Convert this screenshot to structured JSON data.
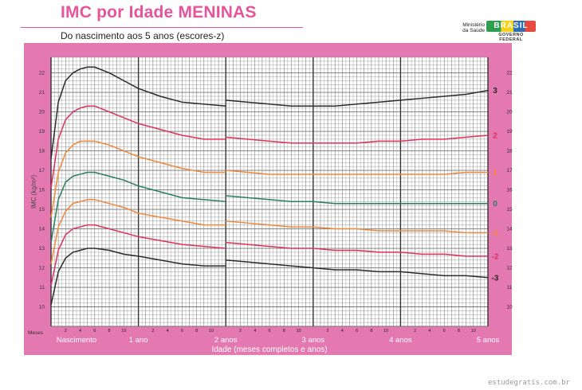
{
  "header": {
    "title": "IMC por Idade MENINAS",
    "subtitle": "Do nascimento aos 5 anos (escores-z)",
    "logo_ministry": "Ministério da Saúde",
    "logo_brand": "BRASIL",
    "logo_gov": "GOVERNO FEDERAL",
    "logo_colors": [
      "#2e9e4f",
      "#f6d21c",
      "#2e6cb3",
      "#e54b3f"
    ]
  },
  "watermark": "estudegratis.com.br",
  "colors": {
    "frame": "#e478b0",
    "grid_bg": "#ffffff",
    "grid_line": "#777777"
  },
  "chart_data": {
    "type": "line",
    "ylabel": "IMC (kg/m²)",
    "xlabel": "Idade (meses completos e anos)",
    "ylim": [
      9,
      22.8
    ],
    "xlim": [
      0,
      60
    ],
    "y_ticks": [
      10,
      11,
      12,
      13,
      14,
      15,
      16,
      17,
      18,
      19,
      20,
      21,
      22
    ],
    "months_label": "Meses",
    "x_major_labels": [
      {
        "x": 0,
        "label": "Nascimento"
      },
      {
        "x": 12,
        "label": "1 ano"
      },
      {
        "x": 24,
        "label": "2 anos"
      },
      {
        "x": 36,
        "label": "3 anos"
      },
      {
        "x": 48,
        "label": "4 anos"
      },
      {
        "x": 60,
        "label": "5 anos"
      }
    ],
    "x_minor_ticks": [
      {
        "x": 2,
        "label": "2"
      },
      {
        "x": 4,
        "label": "4"
      },
      {
        "x": 6,
        "label": "6"
      },
      {
        "x": 8,
        "label": "8"
      },
      {
        "x": 10,
        "label": "10"
      },
      {
        "x": 14,
        "label": "2"
      },
      {
        "x": 16,
        "label": "4"
      },
      {
        "x": 18,
        "label": "6"
      },
      {
        "x": 20,
        "label": "8"
      },
      {
        "x": 22,
        "label": "10"
      },
      {
        "x": 26,
        "label": "2"
      },
      {
        "x": 28,
        "label": "4"
      },
      {
        "x": 30,
        "label": "6"
      },
      {
        "x": 32,
        "label": "8"
      },
      {
        "x": 34,
        "label": "10"
      },
      {
        "x": 38,
        "label": "2"
      },
      {
        "x": 40,
        "label": "4"
      },
      {
        "x": 42,
        "label": "6"
      },
      {
        "x": 44,
        "label": "8"
      },
      {
        "x": 46,
        "label": "10"
      },
      {
        "x": 50,
        "label": "2"
      },
      {
        "x": 52,
        "label": "4"
      },
      {
        "x": 54,
        "label": "6"
      },
      {
        "x": 56,
        "label": "8"
      },
      {
        "x": 58,
        "label": "10"
      }
    ],
    "x": [
      0,
      1,
      2,
      3,
      4,
      5,
      6,
      8,
      10,
      12,
      15,
      18,
      21,
      24,
      24,
      27,
      30,
      33,
      36,
      39,
      42,
      45,
      48,
      51,
      54,
      57,
      60
    ],
    "series": [
      {
        "name": "3",
        "color": "#2b2b2b",
        "values": [
          17.6,
          20.5,
          21.6,
          22.0,
          22.2,
          22.3,
          22.3,
          22.0,
          21.6,
          21.2,
          20.8,
          20.5,
          20.4,
          20.3,
          20.6,
          20.5,
          20.4,
          20.3,
          20.3,
          20.3,
          20.4,
          20.5,
          20.6,
          20.7,
          20.8,
          20.9,
          21.1
        ]
      },
      {
        "name": "2",
        "color": "#e0315e",
        "values": [
          16.1,
          18.6,
          19.6,
          20.0,
          20.2,
          20.3,
          20.3,
          20.0,
          19.7,
          19.4,
          19.1,
          18.8,
          18.6,
          18.6,
          18.7,
          18.6,
          18.5,
          18.4,
          18.4,
          18.4,
          18.4,
          18.5,
          18.5,
          18.6,
          18.6,
          18.7,
          18.8
        ]
      },
      {
        "name": "1",
        "color": "#f0873a",
        "values": [
          14.6,
          16.9,
          17.9,
          18.3,
          18.5,
          18.5,
          18.5,
          18.3,
          18.0,
          17.7,
          17.4,
          17.1,
          16.9,
          16.9,
          17.0,
          16.9,
          16.8,
          16.8,
          16.8,
          16.8,
          16.8,
          16.8,
          16.8,
          16.8,
          16.8,
          16.9,
          16.9
        ]
      },
      {
        "name": "0",
        "color": "#2a7d62",
        "values": [
          13.3,
          15.5,
          16.4,
          16.7,
          16.8,
          16.9,
          16.9,
          16.7,
          16.5,
          16.2,
          15.9,
          15.6,
          15.5,
          15.4,
          15.7,
          15.6,
          15.5,
          15.4,
          15.4,
          15.3,
          15.3,
          15.3,
          15.3,
          15.3,
          15.3,
          15.3,
          15.3
        ]
      },
      {
        "name": "-1",
        "color": "#f0873a",
        "values": [
          12.2,
          14.1,
          14.9,
          15.3,
          15.4,
          15.5,
          15.5,
          15.3,
          15.1,
          14.8,
          14.6,
          14.4,
          14.2,
          14.2,
          14.4,
          14.3,
          14.2,
          14.1,
          14.1,
          14.0,
          14.0,
          13.9,
          13.9,
          13.9,
          13.9,
          13.8,
          13.8
        ]
      },
      {
        "name": "-2",
        "color": "#e0315e",
        "values": [
          11.1,
          12.9,
          13.7,
          14.0,
          14.1,
          14.2,
          14.2,
          14.0,
          13.8,
          13.6,
          13.4,
          13.2,
          13.1,
          13.0,
          13.3,
          13.2,
          13.1,
          13.0,
          13.0,
          12.9,
          12.9,
          12.8,
          12.8,
          12.7,
          12.7,
          12.6,
          12.6
        ]
      },
      {
        "name": "-3",
        "color": "#2b2b2b",
        "values": [
          10.1,
          11.8,
          12.5,
          12.8,
          12.9,
          13.0,
          13.0,
          12.9,
          12.7,
          12.6,
          12.4,
          12.2,
          12.1,
          12.1,
          12.4,
          12.3,
          12.2,
          12.1,
          12.0,
          11.9,
          11.9,
          11.8,
          11.8,
          11.7,
          11.6,
          11.6,
          11.5
        ]
      }
    ],
    "grid": true
  }
}
